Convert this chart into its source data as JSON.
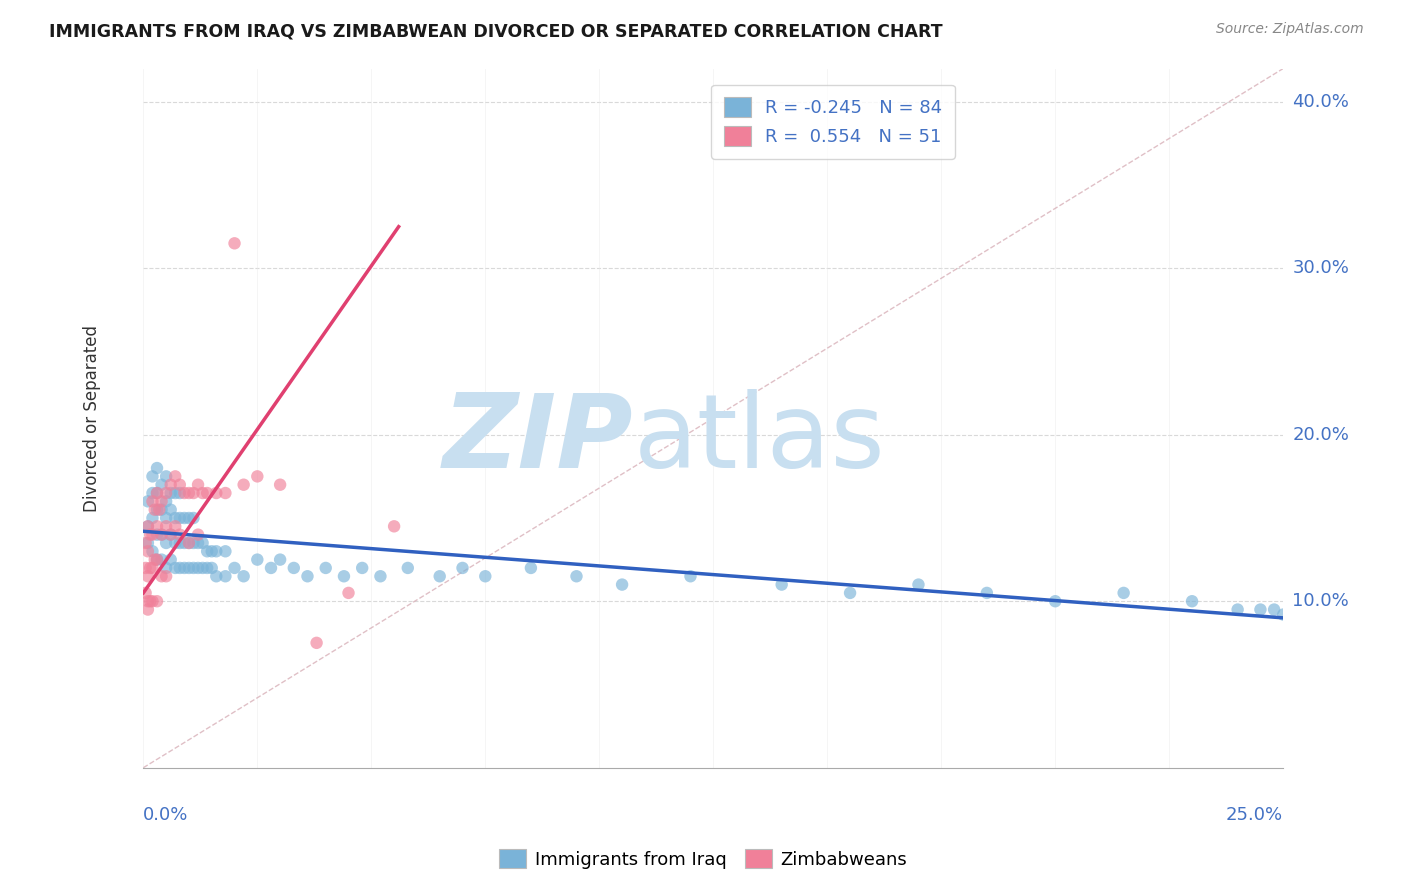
{
  "title": "IMMIGRANTS FROM IRAQ VS ZIMBABWEAN DIVORCED OR SEPARATED CORRELATION CHART",
  "source": "Source: ZipAtlas.com",
  "ylabel": "Divorced or Separated",
  "x_min": 0.0,
  "x_max": 0.25,
  "y_min": 0.0,
  "y_max": 0.42,
  "legend_labels_bottom": [
    "Immigrants from Iraq",
    "Zimbabweans"
  ],
  "iraq_color": "#7ab3d8",
  "zim_color": "#f08099",
  "iraq_trend_color": "#3060c0",
  "zim_trend_color": "#e04070",
  "diag_color": "#d8b0b8",
  "watermark_zip": "ZIP",
  "watermark_atlas": "atlas",
  "watermark_color_zip": "#c8dff0",
  "watermark_color_atlas": "#c8dff0",
  "iraq_R": -0.245,
  "iraq_N": 84,
  "zim_R": 0.554,
  "zim_N": 51,
  "iraq_trend_x0": 0.0,
  "iraq_trend_y0": 0.142,
  "iraq_trend_x1": 0.25,
  "iraq_trend_y1": 0.09,
  "zim_trend_x0": 0.0,
  "zim_trend_y0": 0.105,
  "zim_trend_x1": 0.056,
  "zim_trend_y1": 0.325,
  "iraq_scatter_x": [
    0.001,
    0.001,
    0.001,
    0.002,
    0.002,
    0.002,
    0.002,
    0.003,
    0.003,
    0.003,
    0.003,
    0.003,
    0.004,
    0.004,
    0.004,
    0.004,
    0.005,
    0.005,
    0.005,
    0.005,
    0.005,
    0.006,
    0.006,
    0.006,
    0.006,
    0.007,
    0.007,
    0.007,
    0.007,
    0.008,
    0.008,
    0.008,
    0.008,
    0.009,
    0.009,
    0.009,
    0.01,
    0.01,
    0.01,
    0.011,
    0.011,
    0.011,
    0.012,
    0.012,
    0.013,
    0.013,
    0.014,
    0.014,
    0.015,
    0.015,
    0.016,
    0.016,
    0.018,
    0.018,
    0.02,
    0.022,
    0.025,
    0.028,
    0.03,
    0.033,
    0.036,
    0.04,
    0.044,
    0.048,
    0.052,
    0.058,
    0.065,
    0.07,
    0.075,
    0.085,
    0.095,
    0.105,
    0.12,
    0.14,
    0.155,
    0.17,
    0.185,
    0.2,
    0.215,
    0.23,
    0.24,
    0.245,
    0.248,
    0.25
  ],
  "iraq_scatter_y": [
    0.135,
    0.145,
    0.16,
    0.13,
    0.15,
    0.165,
    0.175,
    0.125,
    0.14,
    0.155,
    0.165,
    0.18,
    0.125,
    0.14,
    0.155,
    0.17,
    0.12,
    0.135,
    0.15,
    0.16,
    0.175,
    0.125,
    0.14,
    0.155,
    0.165,
    0.12,
    0.135,
    0.15,
    0.165,
    0.12,
    0.135,
    0.15,
    0.165,
    0.12,
    0.135,
    0.15,
    0.12,
    0.135,
    0.15,
    0.12,
    0.135,
    0.15,
    0.12,
    0.135,
    0.12,
    0.135,
    0.12,
    0.13,
    0.12,
    0.13,
    0.115,
    0.13,
    0.115,
    0.13,
    0.12,
    0.115,
    0.125,
    0.12,
    0.125,
    0.12,
    0.115,
    0.12,
    0.115,
    0.12,
    0.115,
    0.12,
    0.115,
    0.12,
    0.115,
    0.12,
    0.115,
    0.11,
    0.115,
    0.11,
    0.105,
    0.11,
    0.105,
    0.1,
    0.105,
    0.1,
    0.095,
    0.095,
    0.095,
    0.092
  ],
  "zim_scatter_x": [
    0.0005,
    0.0005,
    0.0005,
    0.001,
    0.001,
    0.001,
    0.001,
    0.001,
    0.0015,
    0.0015,
    0.0015,
    0.002,
    0.002,
    0.002,
    0.002,
    0.0025,
    0.0025,
    0.003,
    0.003,
    0.003,
    0.003,
    0.0035,
    0.004,
    0.004,
    0.004,
    0.005,
    0.005,
    0.005,
    0.006,
    0.006,
    0.007,
    0.007,
    0.008,
    0.008,
    0.009,
    0.01,
    0.01,
    0.011,
    0.012,
    0.012,
    0.013,
    0.014,
    0.016,
    0.018,
    0.02,
    0.022,
    0.025,
    0.03,
    0.038,
    0.045,
    0.055
  ],
  "zim_scatter_y": [
    0.135,
    0.12,
    0.105,
    0.145,
    0.13,
    0.115,
    0.1,
    0.095,
    0.14,
    0.12,
    0.1,
    0.16,
    0.14,
    0.12,
    0.1,
    0.155,
    0.125,
    0.165,
    0.145,
    0.125,
    0.1,
    0.155,
    0.16,
    0.14,
    0.115,
    0.165,
    0.145,
    0.115,
    0.17,
    0.14,
    0.175,
    0.145,
    0.17,
    0.14,
    0.165,
    0.165,
    0.135,
    0.165,
    0.17,
    0.14,
    0.165,
    0.165,
    0.165,
    0.165,
    0.315,
    0.17,
    0.175,
    0.17,
    0.075,
    0.105,
    0.145
  ]
}
